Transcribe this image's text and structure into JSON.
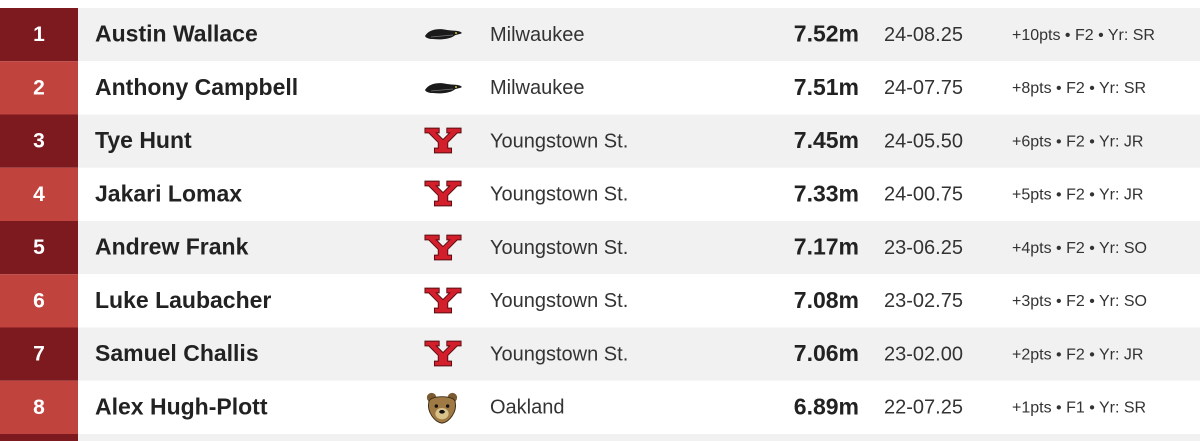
{
  "table": {
    "rows": [
      [
        "1",
        "Austin Wallace",
        "Milwaukee",
        "7.52m",
        "24-08.25",
        "+10pts • F2 • Yr: SR"
      ],
      [
        "2",
        "Anthony Campbell",
        "Milwaukee",
        "7.51m",
        "24-07.75",
        "+8pts • F2 • Yr: SR"
      ],
      [
        "3",
        "Tye Hunt",
        "Youngstown St.",
        "7.45m",
        "24-05.50",
        "+6pts • F2 • Yr: JR"
      ],
      [
        "4",
        "Jakari Lomax",
        "Youngstown St.",
        "7.33m",
        "24-00.75",
        "+5pts • F2 • Yr: JR"
      ],
      [
        "5",
        "Andrew Frank",
        "Youngstown St.",
        "7.17m",
        "23-06.25",
        "+4pts • F2 • Yr: SO"
      ],
      [
        "6",
        "Luke Laubacher",
        "Youngstown St.",
        "7.08m",
        "23-02.75",
        "+3pts • F2 • Yr: SO"
      ],
      [
        "7",
        "Samuel Challis",
        "Youngstown St.",
        "7.06m",
        "23-02.00",
        "+2pts • F2 • Yr: JR"
      ],
      [
        "8",
        "Alex Hugh-Plott",
        "Oakland",
        "6.89m",
        "22-07.25",
        "+1pts • F1 • Yr: SR"
      ]
    ]
  }
}
